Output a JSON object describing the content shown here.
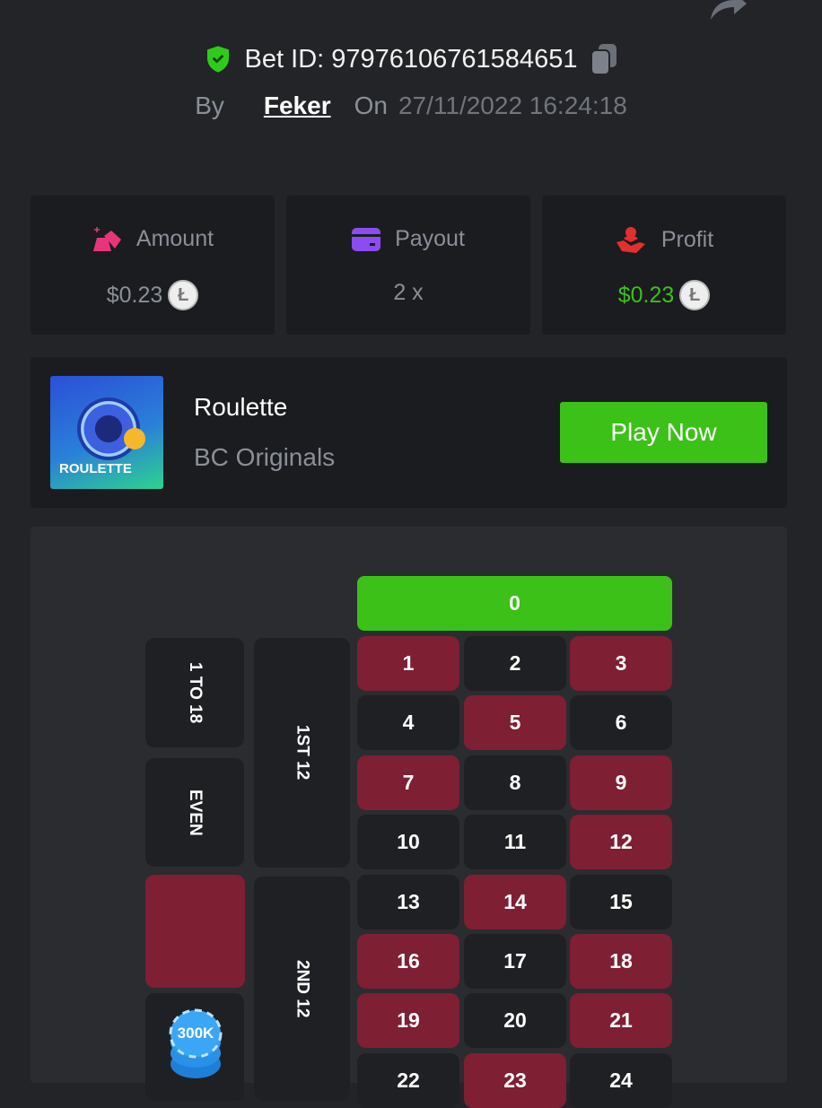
{
  "header": {
    "bet_id_label": "Bet ID:",
    "bet_id": "97976106761584651",
    "by_label": "By",
    "user": "Feker",
    "on_label": "On",
    "date": "27/11/2022 16:24:18"
  },
  "stats": [
    {
      "label": "Amount",
      "value": "$0.23",
      "icon": "gold-bars-icon",
      "coin": "litecoin-icon",
      "color": "#8a8f98"
    },
    {
      "label": "Payout",
      "value": "2 x",
      "icon": "card-icon"
    },
    {
      "label": "Profit",
      "value": "$0.23",
      "icon": "profit-hand-icon",
      "coin": "litecoin-icon",
      "color": "#3bc117"
    }
  ],
  "game": {
    "name": "Roulette",
    "provider": "BC Originals",
    "thumb_text": "ROULETTE",
    "play_label": "Play Now"
  },
  "board": {
    "zero": "0",
    "numbers": [
      "1",
      "2",
      "3",
      "4",
      "5",
      "6",
      "7",
      "8",
      "9",
      "10",
      "11",
      "12",
      "13",
      "14",
      "15",
      "16",
      "17",
      "18",
      "19",
      "20",
      "21",
      "22",
      "23",
      "24"
    ],
    "red": [
      1,
      3,
      5,
      7,
      9,
      12,
      14,
      16,
      18,
      19,
      21,
      23
    ],
    "outside": {
      "low": "1 TO 18",
      "even": "EVEN"
    },
    "dozens": [
      "1ST 12",
      "2ND 12"
    ],
    "chip": "300K"
  },
  "colors": {
    "green": "#3bc117",
    "red": "#7e1f34",
    "black": "#1f2023"
  }
}
